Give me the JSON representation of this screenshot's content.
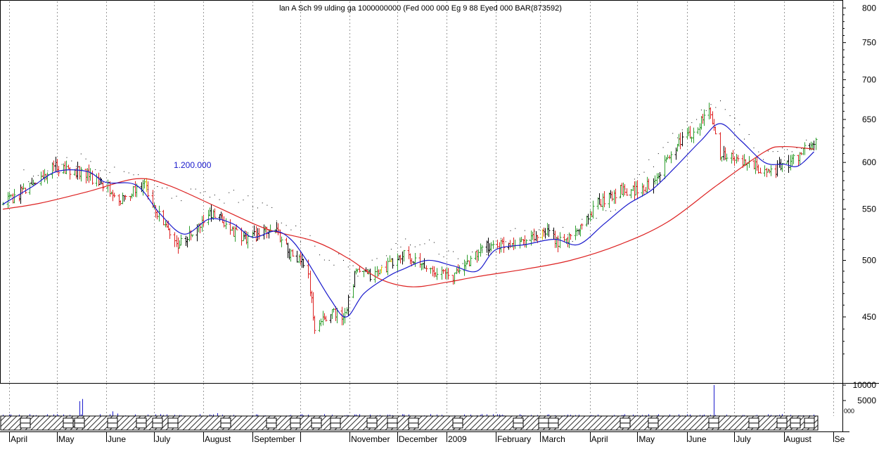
{
  "header": {
    "overlap_text": "lan A Sch 99 ulding ga 1000000000 (Fed 000 000 Eg 9 88 Eyed 000 BAR(873592)",
    "annotation": "1.200.000"
  },
  "colors": {
    "background": "#ffffff",
    "frame": "#000000",
    "grid": "#9a9a9a",
    "up_bar": "#2e9e2e",
    "down_bar": "#dd2222",
    "neutral_bar": "#000000",
    "yellow_bar": "#e0c000",
    "ma_short": "#1a1acc",
    "ma_long": "#dd2222",
    "volume": "#1a1acc",
    "annotation": "#1a1acc",
    "hatch": "#333333"
  },
  "chart_data": [
    {
      "type": "line",
      "title": "",
      "y_scale": "log",
      "ylim": [
        400,
        810
      ],
      "y_ticks": [
        450,
        500,
        550,
        600,
        650,
        700,
        750,
        800
      ],
      "x_tick_labels": [
        "April",
        "May",
        "June",
        "July",
        "August",
        "September",
        "November",
        "December",
        "2009",
        "February",
        "March",
        "April",
        "May",
        "June",
        "July",
        "August",
        "Se"
      ],
      "grid": true,
      "bar_style": "ohlc",
      "price_points": [
        [
          "2008-03-28",
          555
        ],
        [
          "2008-04-15",
          575
        ],
        [
          "2008-04-30",
          595
        ],
        [
          "2008-05-15",
          590
        ],
        [
          "2008-06-01",
          575
        ],
        [
          "2008-06-10",
          560
        ],
        [
          "2008-06-25",
          575
        ],
        [
          "2008-07-05",
          540
        ],
        [
          "2008-07-15",
          515
        ],
        [
          "2008-07-25",
          525
        ],
        [
          "2008-08-05",
          545
        ],
        [
          "2008-08-15",
          535
        ],
        [
          "2008-08-25",
          520
        ],
        [
          "2008-09-05",
          525
        ],
        [
          "2008-09-15",
          530
        ],
        [
          "2008-09-25",
          505
        ],
        [
          "2008-10-05",
          495
        ],
        [
          "2008-10-10",
          440
        ],
        [
          "2008-10-20",
          455
        ],
        [
          "2008-10-28",
          450
        ],
        [
          "2008-11-05",
          490
        ],
        [
          "2008-11-15",
          485
        ],
        [
          "2008-11-25",
          495
        ],
        [
          "2008-12-05",
          505
        ],
        [
          "2008-12-15",
          495
        ],
        [
          "2008-12-25",
          490
        ],
        [
          "2009-01-05",
          485
        ],
        [
          "2009-01-15",
          500
        ],
        [
          "2009-01-25",
          512
        ],
        [
          "2009-02-05",
          515
        ],
        [
          "2009-02-20",
          520
        ],
        [
          "2009-03-05",
          525
        ],
        [
          "2009-03-15",
          515
        ],
        [
          "2009-03-25",
          530
        ],
        [
          "2009-04-05",
          555
        ],
        [
          "2009-04-20",
          570
        ],
        [
          "2009-05-05",
          570
        ],
        [
          "2009-05-15",
          590
        ],
        [
          "2009-05-25",
          620
        ],
        [
          "2009-06-05",
          635
        ],
        [
          "2009-06-15",
          660
        ],
        [
          "2009-06-22",
          610
        ],
        [
          "2009-07-05",
          600
        ],
        [
          "2009-07-15",
          595
        ],
        [
          "2009-07-25",
          590
        ],
        [
          "2009-08-05",
          600
        ],
        [
          "2009-08-15",
          615
        ],
        [
          "2009-08-20",
          622
        ]
      ],
      "series": [
        {
          "style": "dotted",
          "points": [
            [
              "2008-04-10",
              585
            ],
            [
              "2008-05-15",
              605
            ],
            [
              "2008-06-10",
              585
            ],
            [
              "2008-07-20",
              565
            ],
            [
              "2008-08-20",
              565
            ],
            [
              "2008-09-20",
              540
            ],
            [
              "2008-10-15",
              505
            ],
            [
              "2008-11-10",
              490
            ],
            [
              "2008-12-10",
              520
            ],
            [
              "2009-01-15",
              500
            ],
            [
              "2009-02-15",
              525
            ],
            [
              "2009-03-20",
              525
            ],
            [
              "2009-04-20",
              560
            ],
            [
              "2009-05-20",
              620
            ],
            [
              "2009-06-20",
              670
            ],
            [
              "2009-07-20",
              605
            ],
            [
              "2009-08-20",
              620
            ]
          ]
        },
        {
          "style": "line",
          "points": [
            [
              "2008-03-28",
              555
            ],
            [
              "2008-04-15",
              573
            ],
            [
              "2008-05-01",
              590
            ],
            [
              "2008-05-20",
              590
            ],
            [
              "2008-06-01",
              578
            ],
            [
              "2008-06-20",
              575
            ],
            [
              "2008-07-05",
              545
            ],
            [
              "2008-07-20",
              525
            ],
            [
              "2008-08-05",
              540
            ],
            [
              "2008-08-20",
              535
            ],
            [
              "2008-09-01",
              522
            ],
            [
              "2008-09-15",
              528
            ],
            [
              "2008-09-25",
              520
            ],
            [
              "2008-10-05",
              500
            ],
            [
              "2008-10-20",
              465
            ],
            [
              "2008-10-30",
              450
            ],
            [
              "2008-11-10",
              470
            ],
            [
              "2008-11-25",
              485
            ],
            [
              "2008-12-05",
              492
            ],
            [
              "2008-12-20",
              500
            ],
            [
              "2009-01-05",
              495
            ],
            [
              "2009-01-20",
              490
            ],
            [
              "2009-02-01",
              510
            ],
            [
              "2009-02-20",
              515
            ],
            [
              "2009-03-10",
              520
            ],
            [
              "2009-03-25",
              515
            ],
            [
              "2009-04-10",
              535
            ],
            [
              "2009-04-25",
              555
            ],
            [
              "2009-05-10",
              570
            ],
            [
              "2009-05-25",
              595
            ],
            [
              "2009-06-10",
              625
            ],
            [
              "2009-06-22",
              645
            ],
            [
              "2009-07-05",
              625
            ],
            [
              "2009-07-20",
              600
            ],
            [
              "2009-08-01",
              598
            ],
            [
              "2009-08-10",
              596
            ],
            [
              "2009-08-20",
              612
            ]
          ]
        },
        {
          "style": "line",
          "points": [
            [
              "2008-03-28",
              550
            ],
            [
              "2008-04-20",
              556
            ],
            [
              "2008-05-20",
              568
            ],
            [
              "2008-06-20",
              582
            ],
            [
              "2008-07-10",
              575
            ],
            [
              "2008-08-10",
              552
            ],
            [
              "2008-09-10",
              530
            ],
            [
              "2008-10-10",
              518
            ],
            [
              "2008-10-31",
              502
            ],
            [
              "2008-11-20",
              483
            ],
            [
              "2008-12-10",
              476
            ],
            [
              "2009-01-01",
              480
            ],
            [
              "2009-01-20",
              485
            ],
            [
              "2009-02-20",
              492
            ],
            [
              "2009-03-20",
              500
            ],
            [
              "2009-04-20",
              515
            ],
            [
              "2009-05-20",
              537
            ],
            [
              "2009-06-20",
              575
            ],
            [
              "2009-07-20",
              612
            ],
            [
              "2009-08-01",
              618
            ],
            [
              "2009-08-20",
              615
            ]
          ]
        }
      ]
    },
    {
      "type": "bar",
      "title": "",
      "y_ticks": [
        5000,
        10000
      ],
      "ylim": [
        0,
        12000
      ],
      "spikes": [
        [
          "2008-05-15",
          4800
        ],
        [
          "2008-05-17",
          5500
        ],
        [
          "2008-06-05",
          1500
        ],
        [
          "2008-06-08",
          800
        ],
        [
          "2008-07-05",
          600
        ],
        [
          "2008-08-10",
          900
        ],
        [
          "2008-12-05",
          500
        ],
        [
          "2009-03-20",
          400
        ],
        [
          "2009-06-18",
          10000
        ]
      ],
      "partial_label": "000"
    }
  ]
}
